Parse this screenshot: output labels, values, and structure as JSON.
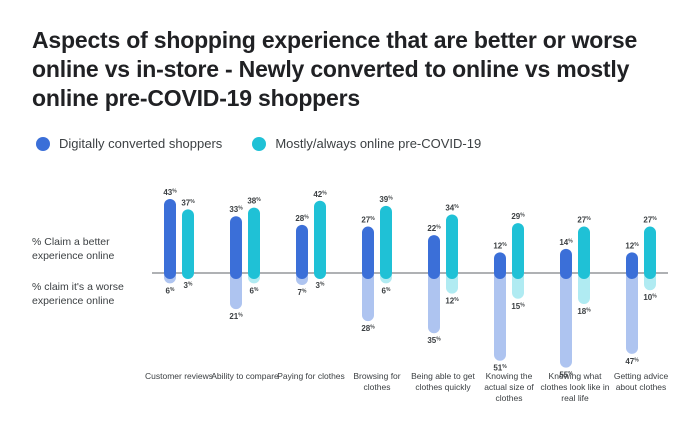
{
  "title": "Aspects of shopping experience that are better or worse online vs in-store - Newly converted to online vs mostly online pre-COVID-19 shoppers",
  "side_labels": {
    "better": "% Claim a better experience online",
    "worse": "% claim it's a worse experience online"
  },
  "chart_data": {
    "type": "bar",
    "title": "Aspects of shopping experience that are better or worse online vs in-store - Newly converted to online vs mostly online pre-COVID-19 shoppers",
    "categories": [
      "Customer reviews",
      "Ability to compare",
      "Paying for clothes",
      "Browsing for clothes",
      "Being able to get clothes quickly",
      "Knowing the actual size of clothes",
      "Knowing what clothes look like in real life",
      "Getting advice about clothes"
    ],
    "series": [
      {
        "name": "Digitally converted shoppers",
        "color": "#3b6fd8",
        "better": [
          43,
          33,
          28,
          27,
          22,
          12,
          14,
          12
        ],
        "worse": [
          6,
          21,
          7,
          28,
          35,
          51,
          55,
          47
        ]
      },
      {
        "name": "Mostly/always online pre-COVID-19",
        "color": "#1fc1d6",
        "better": [
          37,
          38,
          42,
          39,
          34,
          29,
          27,
          27
        ],
        "worse": [
          3,
          6,
          3,
          6,
          12,
          15,
          18,
          10
        ]
      }
    ],
    "value_suffix": "%",
    "xlabel": "",
    "ylabel": ""
  }
}
